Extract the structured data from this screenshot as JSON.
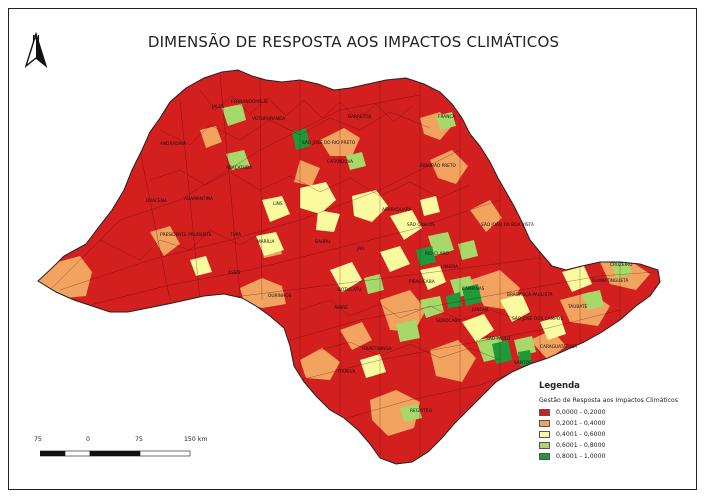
{
  "title": "DIMENSÃO DE RESPOSTA AOS IMPACTOS CLIMÁTICOS",
  "north_arrow": {
    "letter": "N",
    "icon": "north-arrow-icon"
  },
  "legend": {
    "title": "Legenda",
    "subtitle": "Gestão de Resposta aos Impactos Climáticos",
    "classes": [
      {
        "label": "0,0000 - 0,2000",
        "color": "#d41f1f"
      },
      {
        "label": "0,2001 - 0,4000",
        "color": "#f2a35f"
      },
      {
        "label": "0,4001 - 0,6000",
        "color": "#fafa9e"
      },
      {
        "label": "0,6001 - 0,8000",
        "color": "#a6d96a"
      },
      {
        "label": "0,8001 - 1,0000",
        "color": "#1f9a3a"
      }
    ]
  },
  "scale_bar": {
    "labels": [
      "75",
      "0",
      "75",
      "150 km"
    ]
  },
  "cities": [
    "FERNANDÓPOLIS",
    "JALES",
    "VOTUPORANGA",
    "BARRETOS",
    "FRANCA",
    "ANDRADINA",
    "SÃO JOSÉ DO RIO PRETO",
    "CATANDUVA",
    "RIBEIRÃO PRETO",
    "ARAÇATUBA",
    "DRACENA",
    "ADAMANTINA",
    "LINS",
    "ARARAQUARA",
    "SÃO CARLOS",
    "SÃO JOÃO DA BOA VISTA",
    "PRESIDENTE PRUDENTE",
    "TUPÃ",
    "MARÍLIA",
    "BAURU",
    "JAÚ",
    "RIO CLARO",
    "LIMEIRA",
    "ASSIS",
    "OURINHOS",
    "BOTUCATU",
    "PIRACICABA",
    "CAMPINAS",
    "BRAGANÇA PAULISTA",
    "GUARATINGUETÁ",
    "CRUZEIRO",
    "TAUBATÉ",
    "AVARÉ",
    "SOROCABA",
    "JUNDIAÍ",
    "SÃO JOSÉ DOS CAMPOS",
    "ITAPETININGA",
    "SÃO PAULO",
    "CARAGUATATUBA",
    "SANTOS",
    "ITAPEVA",
    "REGISTRO"
  ]
}
